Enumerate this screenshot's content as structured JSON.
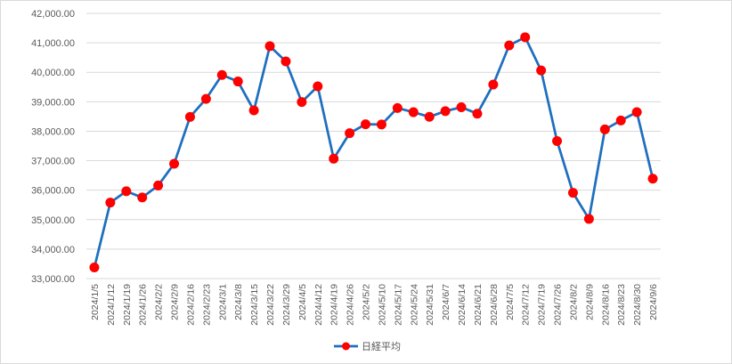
{
  "chart_data": {
    "type": "line",
    "title": "",
    "xlabel": "",
    "ylabel": "",
    "ylim": [
      33000,
      42000
    ],
    "y_ticks": [
      "33,000.00",
      "34,000.00",
      "35,000.00",
      "36,000.00",
      "37,000.00",
      "38,000.00",
      "39,000.00",
      "40,000.00",
      "41,000.00",
      "42,000.00"
    ],
    "y_tick_values": [
      33000,
      34000,
      35000,
      36000,
      37000,
      38000,
      39000,
      40000,
      41000,
      42000
    ],
    "grid": true,
    "legend_position": "bottom",
    "categories": [
      "2024/1/5",
      "2024/1/12",
      "2024/1/19",
      "2024/1/26",
      "2024/2/2",
      "2024/2/9",
      "2024/2/16",
      "2024/2/23",
      "2024/3/1",
      "2024/3/8",
      "2024/3/15",
      "2024/3/22",
      "2024/3/29",
      "2024/4/5",
      "2024/4/12",
      "2024/4/19",
      "2024/4/26",
      "2024/5/2",
      "2024/5/10",
      "2024/5/17",
      "2024/5/24",
      "2024/5/31",
      "2024/6/7",
      "2024/6/14",
      "2024/6/21",
      "2024/6/28",
      "2024/7/5",
      "2024/7/12",
      "2024/7/19",
      "2024/7/26",
      "2024/8/2",
      "2024/8/9",
      "2024/8/16",
      "2024/8/23",
      "2024/8/30",
      "2024/9/6"
    ],
    "series": [
      {
        "name": "日経平均",
        "line_color": "#1f6fbf",
        "marker_color": "#ff0000",
        "values": [
          33377,
          35577,
          35963,
          35751,
          36158,
          36897,
          38487,
          39098,
          39910,
          39688,
          38707,
          40888,
          40369,
          38992,
          39523,
          37068,
          37934,
          38236,
          38229,
          38787,
          38646,
          38488,
          38683,
          38815,
          38596,
          39583,
          40912,
          41190,
          40063,
          37667,
          35910,
          35025,
          38062,
          38364,
          38648,
          36391
        ]
      }
    ]
  }
}
